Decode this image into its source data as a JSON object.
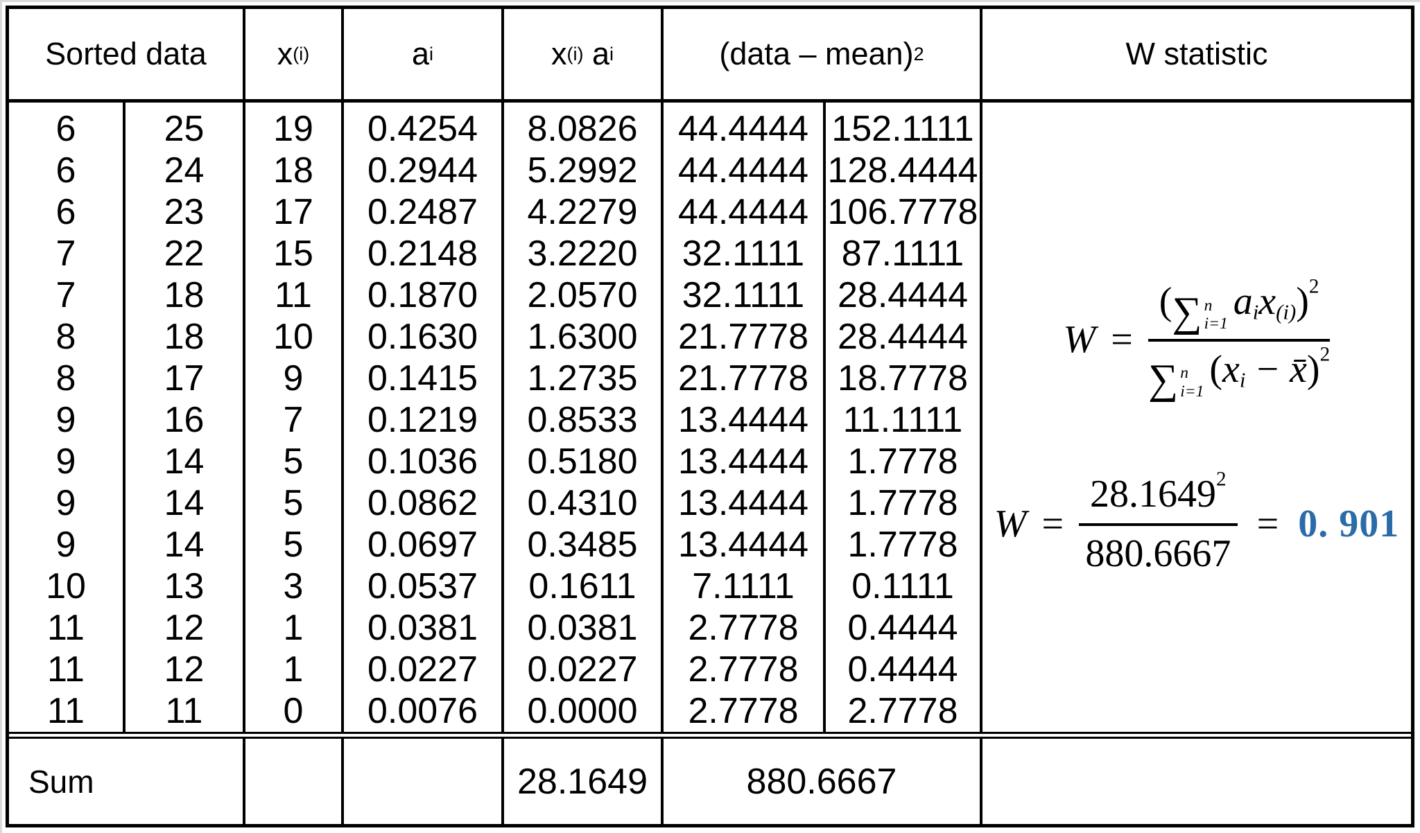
{
  "page": {
    "background": "#ffffff",
    "border_color": "#000000"
  },
  "table": {
    "header": {
      "sorted_data": "Sorted data",
      "x_base": "x",
      "x_sub": "(i)",
      "a_base": "a",
      "a_sub": "i",
      "xa_x_base": "x",
      "xa_x_sub": "(i)",
      "xa_a_base": "a",
      "xa_a_sub": "i",
      "dm_base": "(data – mean)",
      "dm_sup": "2",
      "w_stat": "W statistic"
    },
    "rows": [
      [
        "6",
        "25",
        "19",
        "0.4254",
        "8.0826",
        "44.4444",
        "152.1111"
      ],
      [
        "6",
        "24",
        "18",
        "0.2944",
        "5.2992",
        "44.4444",
        "128.4444"
      ],
      [
        "6",
        "23",
        "17",
        "0.2487",
        "4.2279",
        "44.4444",
        "106.7778"
      ],
      [
        "7",
        "22",
        "15",
        "0.2148",
        "3.2220",
        "32.1111",
        "87.1111"
      ],
      [
        "7",
        "18",
        "11",
        "0.1870",
        "2.0570",
        "32.1111",
        "28.4444"
      ],
      [
        "8",
        "18",
        "10",
        "0.1630",
        "1.6300",
        "21.7778",
        "28.4444"
      ],
      [
        "8",
        "17",
        "9",
        "0.1415",
        "1.2735",
        "21.7778",
        "18.7778"
      ],
      [
        "9",
        "16",
        "7",
        "0.1219",
        "0.8533",
        "13.4444",
        "11.1111"
      ],
      [
        "9",
        "14",
        "5",
        "0.1036",
        "0.5180",
        "13.4444",
        "1.7778"
      ],
      [
        "9",
        "14",
        "5",
        "0.0862",
        "0.4310",
        "13.4444",
        "1.7778"
      ],
      [
        "9",
        "14",
        "5",
        "0.0697",
        "0.3485",
        "13.4444",
        "1.7778"
      ],
      [
        "10",
        "13",
        "3",
        "0.0537",
        "0.1611",
        "7.1111",
        "0.1111"
      ],
      [
        "11",
        "12",
        "1",
        "0.0381",
        "0.0381",
        "2.7778",
        "0.4444"
      ],
      [
        "11",
        "12",
        "1",
        "0.0227",
        "0.0227",
        "2.7778",
        "0.4444"
      ],
      [
        "11",
        "11",
        "0",
        "0.0076",
        "0.0000",
        "2.7778",
        "2.7778"
      ]
    ],
    "sum": {
      "label": "Sum",
      "xa_total": "28.1649",
      "dm_total": "880.6667"
    }
  },
  "formulas": {
    "colors": {
      "result": "#2b6ca8"
    },
    "general": {
      "lhs": "W",
      "eq": "=",
      "sigma": "∑",
      "upper": "n",
      "lower": "i=1",
      "num_open": "(",
      "num_a": "a",
      "num_a_sub": "i",
      "num_x": "x",
      "num_x_sub": "(i)",
      "num_close": ")",
      "num_exp": "2",
      "den_sigma": "∑",
      "den_upper": "n",
      "den_lower": "i=1",
      "den_open": "(",
      "den_x": "x",
      "den_x_sub": "i",
      "den_minus": "−",
      "den_xbar": "x̄",
      "den_close": ")",
      "den_exp": "2"
    },
    "computed": {
      "lhs": "W",
      "eq": "=",
      "numerator": "28.1649",
      "num_exp": "2",
      "denominator": "880.6667",
      "eq2": "=",
      "result": "0. 901"
    }
  }
}
